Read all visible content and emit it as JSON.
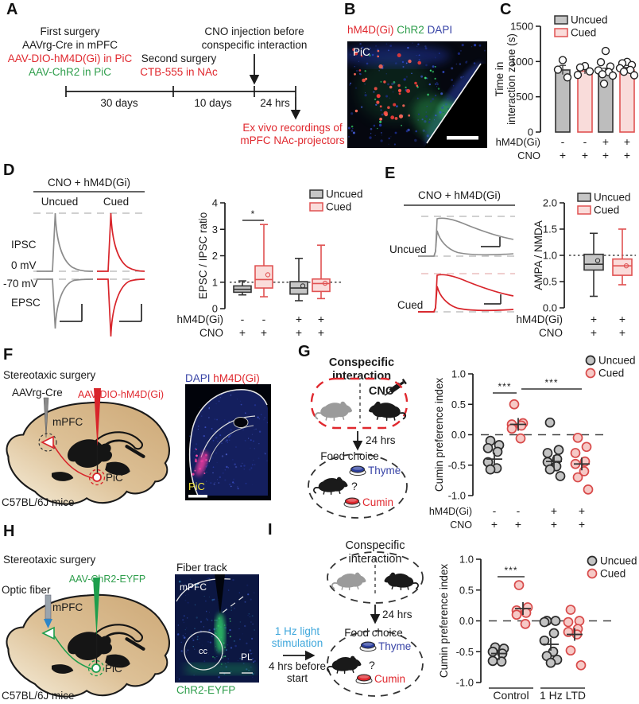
{
  "colors": {
    "red": "#e0282e",
    "green": "#2f9e4c",
    "blue": "#3743a6",
    "cyan": "#41a8dc",
    "uncued_fill": "#c2c2c2",
    "cued_fill": "#f9dcda",
    "cued_stroke": "#e05252",
    "dark": "#1a1a1a"
  },
  "panels": {
    "a": {
      "label": "A",
      "first_surgery": "First surgery",
      "aavrg": "AAVrg-Cre in mPFC",
      "aavdio": "AAV-DIO-hM4D(Gi) in PiC",
      "aavchr2": "AAV-ChR2 in PiC",
      "second_surgery": "Second surgery",
      "ctb": "CTB-555 in NAc",
      "cno_line1": "CNO injection before",
      "cno_line2": "conspecific interaction",
      "t30": "30 days",
      "t10": "10 days",
      "t24": "24 hrs",
      "exvivo1": "Ex vivo recordings of",
      "exvivo2": "mPFC NAc-projectors"
    },
    "b": {
      "label": "B",
      "stain_red": "hM4D(Gi)",
      "stain_green": "ChR2",
      "stain_blue": "DAPI",
      "region": "PiC"
    },
    "c": {
      "label": "C"
    },
    "d": {
      "label": "D",
      "header": "CNO + hM4D(Gi)",
      "col1": "Uncued",
      "col2": "Cued",
      "trace_labels": {
        "ipsc": "IPSC",
        "zero": "0 mV",
        "minus70": "-70 mV",
        "epsc": "EPSC"
      }
    },
    "e": {
      "label": "E",
      "header": "CNO + hM4D(Gi)",
      "row1": "Uncued",
      "row2": "Cued"
    },
    "f": {
      "label": "F",
      "title": "Stereotaxic surgery",
      "inj1": "AAVrg-Cre",
      "inj2": "AAV-DIO-hM4D(Gi)",
      "region1": "mPFC",
      "region2": "PiC",
      "mouse_line": "C57BL/6J mice",
      "img_stain1": "DAPI",
      "img_stain2": "hM4D(Gi)",
      "img_region": "PiC"
    },
    "g": {
      "label": "G",
      "title1": "Conspecific",
      "title2": "interaction",
      "cno": "CNO",
      "delay": "24 hrs",
      "food": "Food choice",
      "thyme": "Thyme",
      "cumin": "Cumin",
      "q": "?"
    },
    "h": {
      "label": "H",
      "title": "Stereotaxic surgery",
      "fiber": "Optic fiber",
      "inj": "AAV-ChR2-EYFP",
      "region1": "mPFC",
      "region2": "PiC",
      "mouse_line": "C57BL/6J mice",
      "img_title": "Fiber track",
      "img_r1": "mPFC",
      "img_r2": "cc",
      "img_r3": "PL",
      "img_stain": "ChR2-EYFP"
    },
    "i": {
      "label": "I",
      "title1": "Conspecific",
      "title2": "interaction",
      "delay": "24 hrs",
      "food": "Food choice",
      "thyme": "Thyme",
      "cumin": "Cumin",
      "q": "?",
      "stim1": "1 Hz light",
      "stim2": "stimulation",
      "stim3": "4 hrs before",
      "stim4": "start"
    }
  },
  "chart_data": [
    {
      "panel": "C",
      "type": "bar",
      "ylabel": [
        "Time in",
        "interaction zone (s)"
      ],
      "ylim": [
        0,
        1500
      ],
      "yticks": [
        0,
        500,
        1000,
        1500
      ],
      "ytick_labels": [
        "0",
        "500",
        "1000",
        "1500"
      ],
      "legend": [
        "Uncued",
        "Cued"
      ],
      "legend_position": "top-right",
      "grid": false,
      "groups": [
        {
          "condition": "Uncued",
          "mean": 880,
          "sem": 65,
          "points": [
            1020,
            885,
            775
          ]
        },
        {
          "condition": "Cued",
          "mean": 865,
          "sem": 40,
          "points": [
            935,
            915,
            860,
            810
          ]
        },
        {
          "condition": "Uncued",
          "mean": 855,
          "sem": 50,
          "points": [
            1150,
            990,
            930,
            875,
            850,
            820,
            800,
            685
          ]
        },
        {
          "condition": "Cued",
          "mean": 880,
          "sem": 35,
          "points": [
            995,
            975,
            950,
            905,
            880,
            855,
            805
          ]
        }
      ],
      "xrows": [
        {
          "label": "hM4D(Gi)",
          "values": [
            "-",
            "-",
            "+",
            "+"
          ]
        },
        {
          "label": "CNO",
          "values": [
            "+",
            "+",
            "+",
            "+"
          ]
        }
      ]
    },
    {
      "panel": "D",
      "type": "box",
      "ylabel": "EPSC / IPSC ratio",
      "ylim": [
        0,
        4
      ],
      "yticks": [
        0,
        1,
        2,
        3,
        4
      ],
      "ytick_labels": [
        "0",
        "1",
        "2",
        "3",
        "4"
      ],
      "refline": 1,
      "legend": [
        "Uncued",
        "Cued"
      ],
      "legend_position": "top-right",
      "grid": false,
      "groups": [
        {
          "condition": "Uncued",
          "whisker_low": 0.52,
          "q1": 0.62,
          "median": 0.73,
          "q3": 0.86,
          "whisker_high": 1.05
        },
        {
          "condition": "Cued",
          "whisker_low": 0.45,
          "q1": 0.78,
          "median": 1.1,
          "q3": 1.62,
          "whisker_high": 3.18,
          "outlier": 1.28
        },
        {
          "condition": "Uncued",
          "whisker_low": 0.3,
          "q1": 0.55,
          "median": 0.78,
          "q3": 1.02,
          "whisker_high": 1.9,
          "outlier": 0.86
        },
        {
          "condition": "Cued",
          "whisker_low": 0.38,
          "q1": 0.65,
          "median": 0.95,
          "q3": 1.12,
          "whisker_high": 2.4,
          "outlier": 0.96
        }
      ],
      "significance": [
        {
          "group_a": 0,
          "group_b": 1,
          "label": "*"
        }
      ],
      "xrows": [
        {
          "label": "hM4D(Gi)",
          "values": [
            "-",
            "-",
            "+",
            "+"
          ]
        },
        {
          "label": "CNO",
          "values": [
            "+",
            "+",
            "+",
            "+"
          ]
        }
      ]
    },
    {
      "panel": "E",
      "type": "box",
      "ylabel": "AMPA / NMDA",
      "ylim": [
        0,
        2
      ],
      "yticks": [
        0,
        0.5,
        1,
        1.5,
        2
      ],
      "ytick_labels": [
        "0.0",
        "0.5",
        "1.0",
        "1.5",
        "2.0"
      ],
      "refline": 1,
      "legend": [
        "Uncued",
        "Cued"
      ],
      "legend_position": "top-right",
      "grid": false,
      "groups": [
        {
          "condition": "Uncued",
          "whisker_low": 0.22,
          "q1": 0.72,
          "median": 0.83,
          "q3": 1.02,
          "whisker_high": 1.42,
          "outlier": 0.9
        },
        {
          "condition": "Cued",
          "whisker_low": 0.44,
          "q1": 0.62,
          "median": 0.8,
          "q3": 0.93,
          "whisker_high": 1.5,
          "outlier": 0.8
        }
      ],
      "xrows": [
        {
          "label": "hM4D(Gi)",
          "values": [
            "+",
            "+"
          ]
        },
        {
          "label": "CNO",
          "values": [
            "+",
            "+"
          ]
        }
      ]
    },
    {
      "panel": "G",
      "type": "scatter",
      "ylabel": "Cumin preference index",
      "ylim": [
        -1,
        1
      ],
      "yticks": [
        -1,
        -0.5,
        0,
        0.5,
        1
      ],
      "ytick_labels": [
        "-1.0",
        "-0.5",
        "0.0",
        "0.5",
        "1.0"
      ],
      "refline": 0,
      "legend": [
        "Uncued",
        "Cued"
      ],
      "legend_position": "top-right",
      "grid": false,
      "groups": [
        {
          "condition": "Uncued",
          "mean": -0.4,
          "points": [
            -0.1,
            -0.17,
            -0.22,
            -0.28,
            -0.45,
            -0.55,
            -0.57
          ]
        },
        {
          "condition": "Cued",
          "mean": 0.17,
          "points": [
            0.5,
            0.19,
            0.17,
            0.15,
            0.1,
            -0.06
          ]
        },
        {
          "condition": "Uncued",
          "mean": -0.44,
          "points": [
            0.2,
            -0.25,
            -0.3,
            -0.4,
            -0.45,
            -0.52,
            -0.57,
            -0.68
          ]
        },
        {
          "condition": "Cued",
          "mean": -0.48,
          "points": [
            -0.05,
            -0.2,
            -0.3,
            -0.44,
            -0.48,
            -0.6,
            -0.7,
            -0.9
          ]
        }
      ],
      "significance": [
        {
          "group_a": 0,
          "group_b": 1,
          "label": "***"
        },
        {
          "group_a": 1,
          "group_b": 3,
          "label": "***"
        }
      ],
      "xrows": [
        {
          "label": "hM4D(Gi)",
          "values": [
            "-",
            "-",
            "+",
            "+"
          ]
        },
        {
          "label": "CNO",
          "values": [
            "+",
            "+",
            "+",
            "+"
          ]
        }
      ]
    },
    {
      "panel": "I",
      "type": "scatter",
      "ylabel": "Cumin preference index",
      "ylim": [
        -1,
        1
      ],
      "yticks": [
        -1,
        -0.5,
        0,
        0.5,
        1
      ],
      "ytick_labels": [
        "-1.0",
        "-0.5",
        "0.0",
        "0.5",
        "1.0"
      ],
      "refline": 0,
      "legend": [
        "Uncued",
        "Cued"
      ],
      "legend_position": "top-right",
      "grid": false,
      "groups": [
        {
          "condition": "Uncued",
          "treatment": "Control",
          "mean": -0.53,
          "points": [
            -0.43,
            -0.45,
            -0.5,
            -0.53,
            -0.65,
            -0.66
          ]
        },
        {
          "condition": "Cued",
          "treatment": "Control",
          "mean": 0.2,
          "points": [
            0.58,
            0.22,
            0.17,
            0.13,
            0.1,
            -0.05
          ]
        },
        {
          "condition": "Uncued",
          "treatment": "1 Hz LTD",
          "mean": -0.38,
          "points": [
            0.0,
            0.0,
            -0.02,
            -0.2,
            -0.32,
            -0.5,
            -0.57,
            -0.63,
            -0.68
          ]
        },
        {
          "condition": "Cued",
          "treatment": "1 Hz LTD",
          "mean": -0.22,
          "points": [
            0.18,
            0.0,
            -0.02,
            -0.13,
            -0.18,
            -0.22,
            -0.48,
            -0.72
          ]
        }
      ],
      "significance": [
        {
          "group_a": 0,
          "group_b": 1,
          "label": "***"
        }
      ],
      "xgroups": [
        {
          "label": "Control",
          "color": "#1a1a1a"
        },
        {
          "label": "1 Hz LTD",
          "color": "#41a8dc"
        }
      ]
    }
  ]
}
